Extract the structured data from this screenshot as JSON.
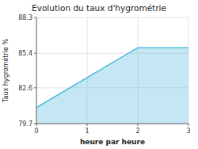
{
  "chart_data": {
    "type": "area",
    "title": "Evolution du taux d'hygrométrie",
    "xlabel": "heure par heure",
    "ylabel": "Taux hygrométrie %",
    "x": [
      0,
      2,
      3
    ],
    "values": [
      81.0,
      85.85,
      85.85
    ],
    "color": "#55bbdd",
    "xlim": [
      0,
      3
    ],
    "ylim": [
      79.7,
      88.3
    ],
    "xticks": [
      0,
      1,
      2,
      3
    ],
    "yticks": [
      79.7,
      82.6,
      85.4,
      88.3
    ],
    "grid": true
  }
}
